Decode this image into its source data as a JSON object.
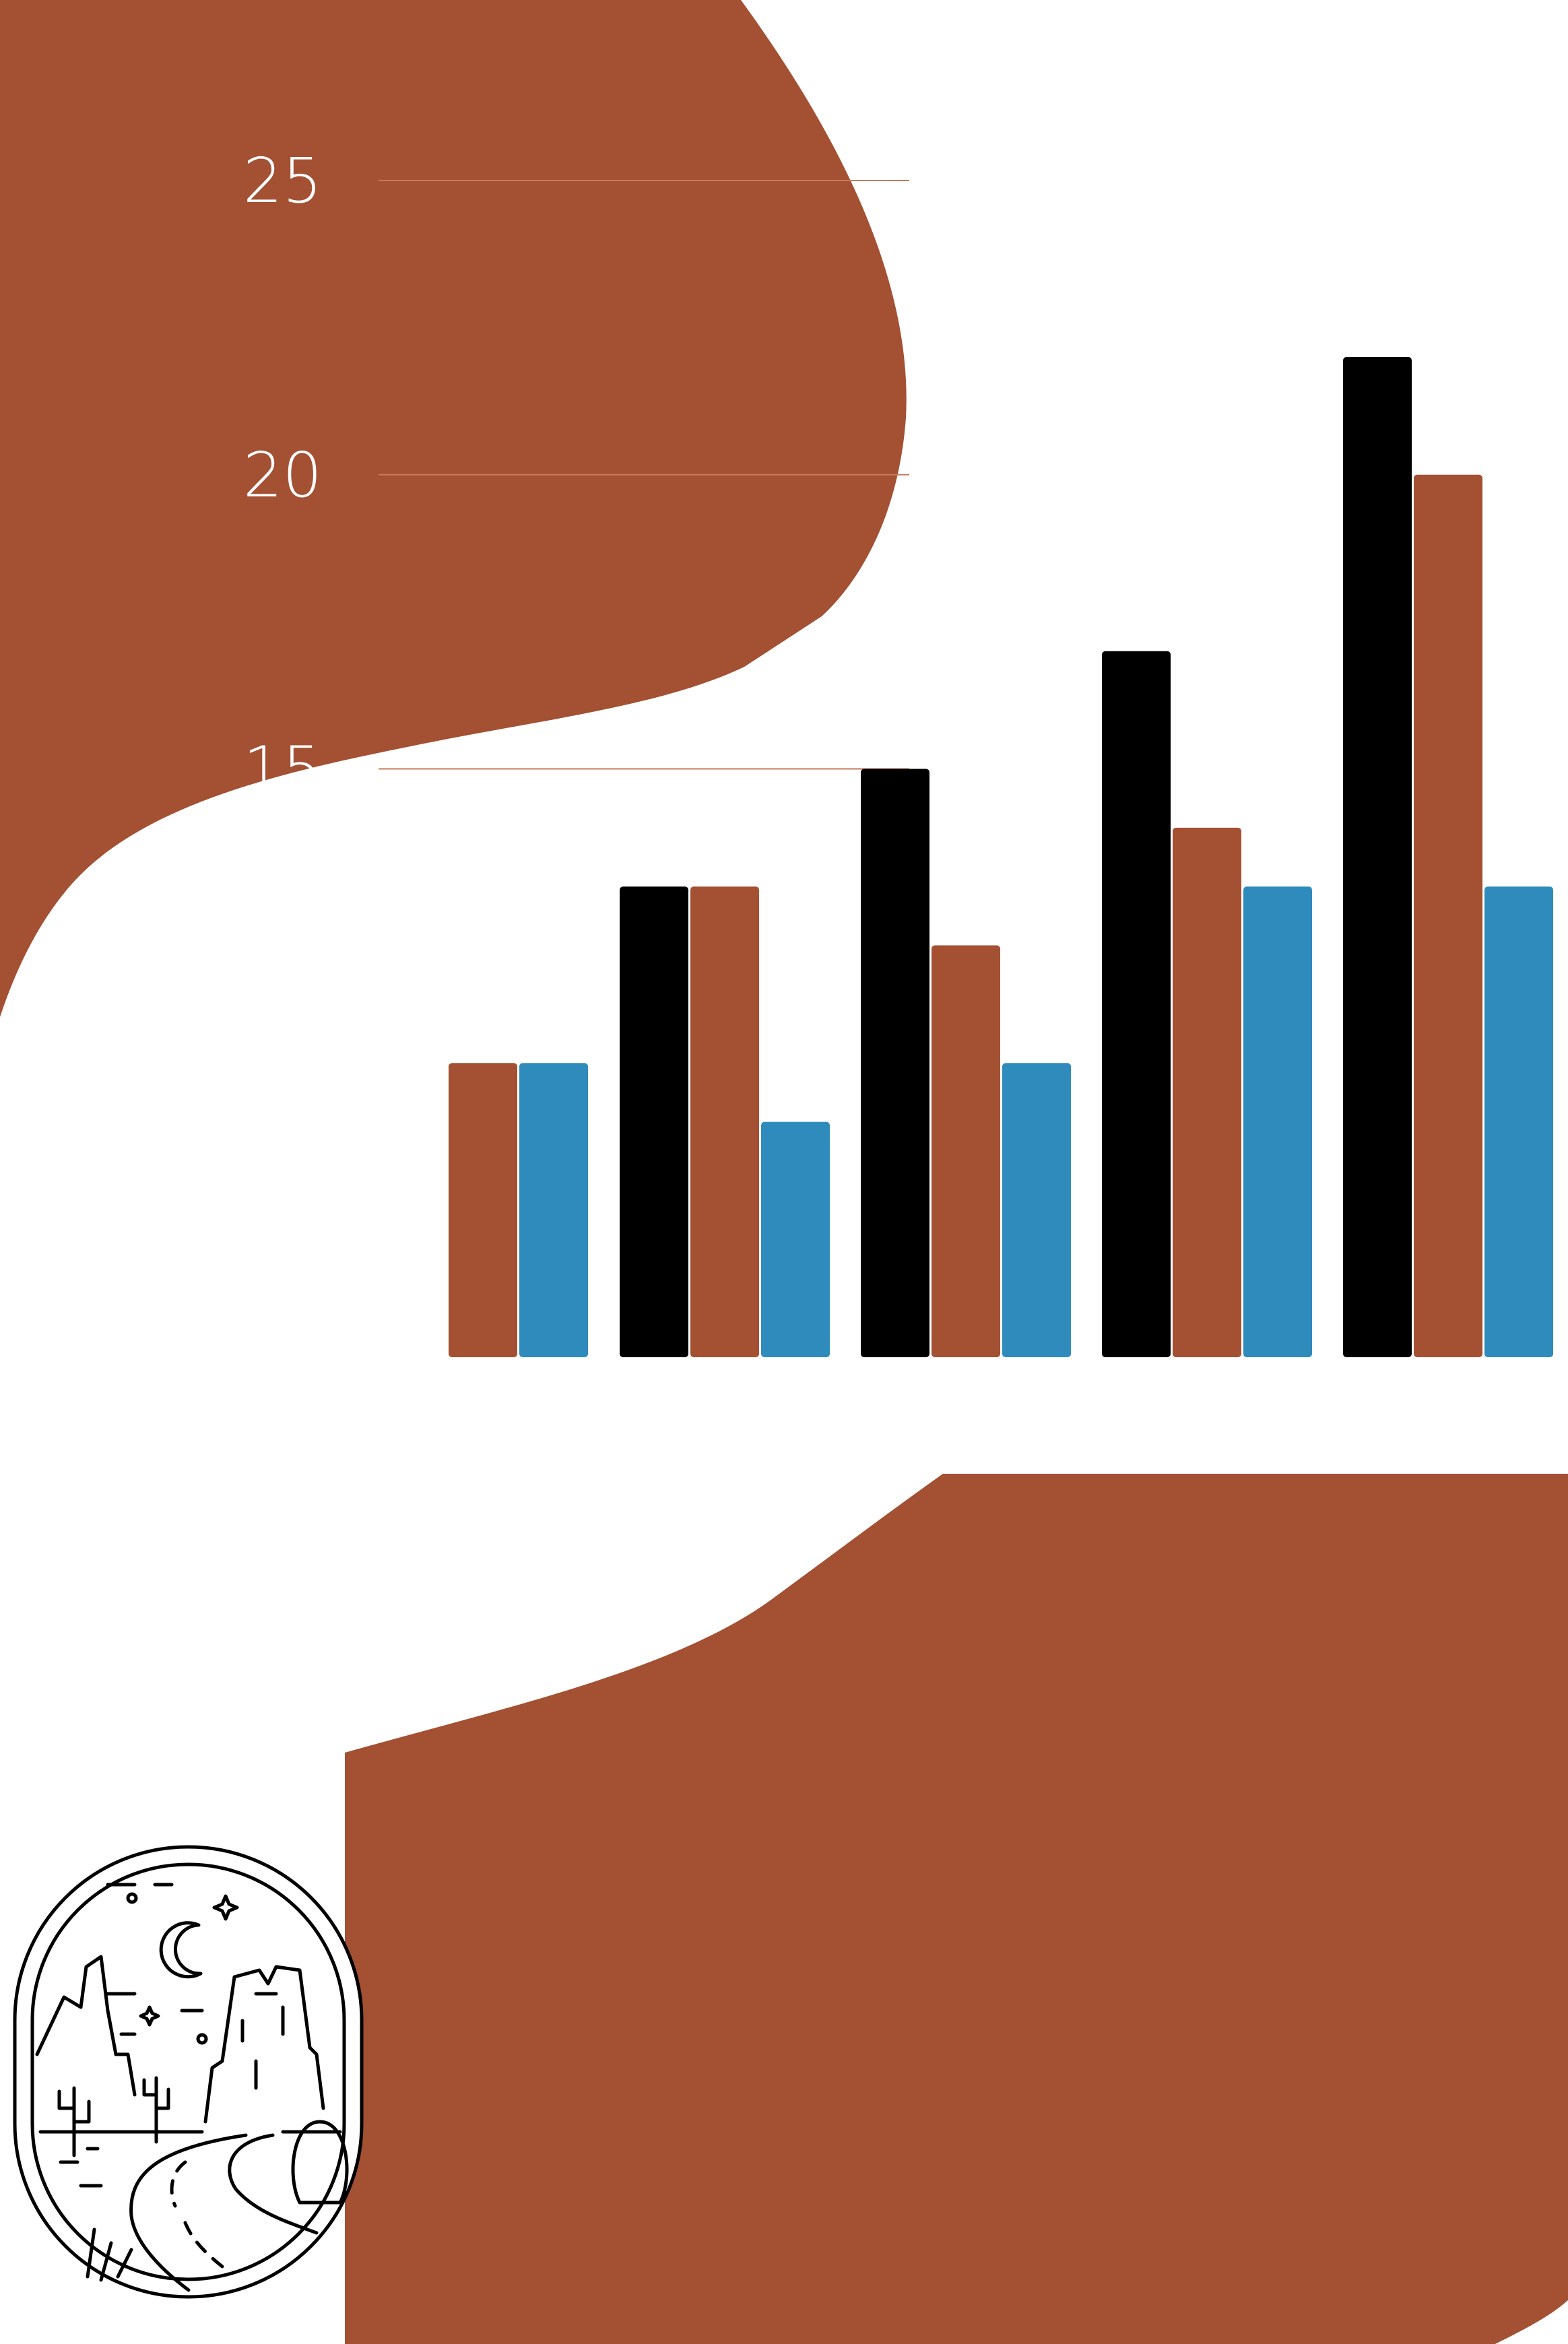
{
  "colors": {
    "background": "#ffffff",
    "terracotta": "#a35033",
    "black": "#000000",
    "blue": "#2e8bbb",
    "gridline": "#c77a5c"
  },
  "chart_data": {
    "type": "bar",
    "title": "",
    "xlabel": "",
    "ylabel": "",
    "categories": [
      "",
      "",
      "",
      "",
      ""
    ],
    "series": [
      {
        "color": "#000000",
        "values": [
          null,
          13,
          15,
          17,
          22
        ]
      },
      {
        "color": "#a35033",
        "values": [
          10,
          13,
          12,
          14,
          20
        ]
      },
      {
        "color": "#2e8bbb",
        "values": [
          10,
          9,
          10,
          13,
          13
        ]
      }
    ],
    "y_ticks": [
      "15",
      "20",
      "25"
    ],
    "ylim": [
      5,
      25
    ],
    "grid": true,
    "legend": "none"
  },
  "decorations": {
    "badge_icon": "desert-night-landscape-icon"
  }
}
